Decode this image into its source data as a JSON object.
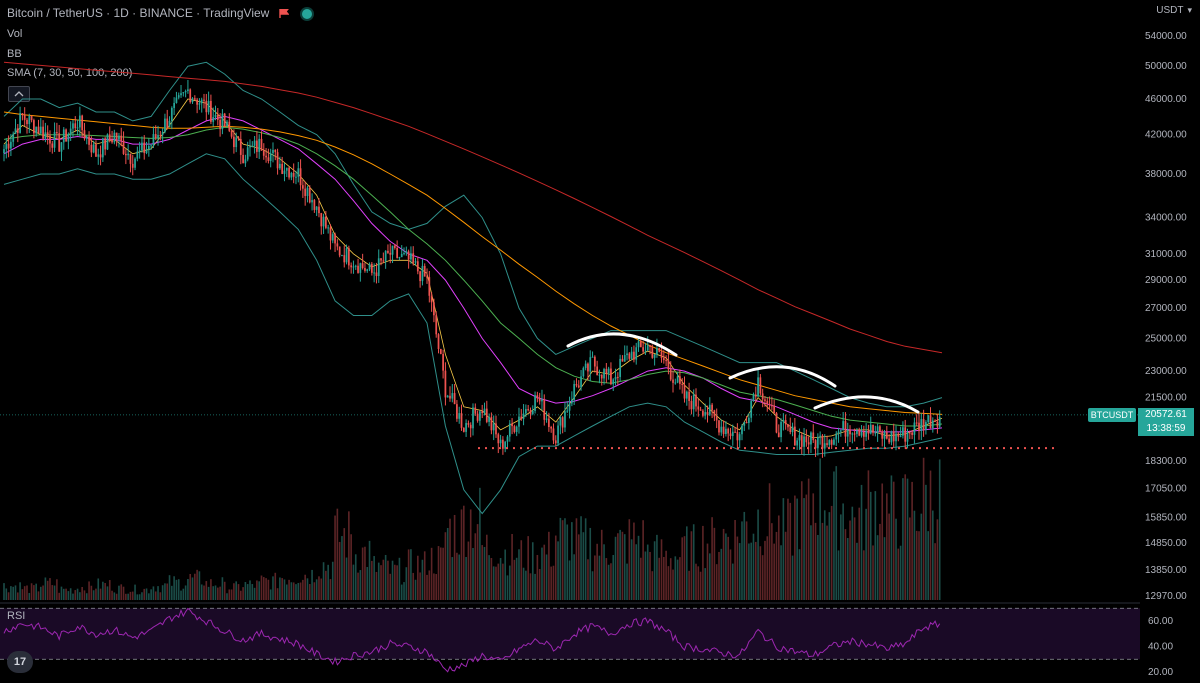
{
  "header": {
    "title": "Bitcoin / TetherUS · 1D · BINANCE · TradingView",
    "indicators": [
      "Vol",
      "BB",
      "SMA (7, 30, 50, 100, 200)"
    ]
  },
  "rsi_label": "RSI",
  "currency": "USDT",
  "price_symbol": "BTCUSDT",
  "last_price": "20572.61",
  "countdown": "13:38:59",
  "logo_text": "17",
  "colors": {
    "up": "#26a69a",
    "down": "#ef5350",
    "accent": "#26a69a",
    "rsi": "#9c27b0"
  },
  "chart_data": [
    {
      "type": "line",
      "title": "Bitcoin / TetherUS · 1D · BINANCE · TradingView",
      "scale": "log",
      "y_ticks": [
        54000,
        50000,
        46000,
        42000,
        38000,
        34000,
        31000,
        29000,
        27000,
        25000,
        23000,
        21500,
        18300,
        17050,
        15850,
        14850,
        13850,
        12970
      ],
      "y_tick_labels": [
        "54000.00",
        "50000.00",
        "46000.00",
        "42000.00",
        "38000.00",
        "34000.00",
        "31000.00",
        "29000.00",
        "27000.00",
        "25000.00",
        "23000.00",
        "21500.00",
        "18300.00",
        "17050.00",
        "15850.00",
        "14850.00",
        "13850.00",
        "12970.00"
      ],
      "ylim": [
        12500,
        57000
      ],
      "last_price": 20572.61,
      "support_level": 18900,
      "price_path": [
        40500,
        44000,
        42500,
        41000,
        43500,
        40000,
        42000,
        39500,
        41000,
        44000,
        47000,
        45000,
        43000,
        40000,
        41000,
        39000,
        38000,
        35000,
        31500,
        30500,
        29500,
        31000,
        30500,
        29000,
        22000,
        20000,
        21000,
        19000,
        20500,
        21500,
        19500,
        22000,
        23500,
        22500,
        24000,
        24500,
        23500,
        21500,
        21000,
        20000,
        19500,
        22500,
        20000,
        19500,
        19200,
        19500,
        20000,
        19800,
        19400,
        19600,
        20200,
        20572
      ],
      "sma": [
        {
          "name": "SMA 7",
          "color": "#f7c948",
          "values": [
            41000,
            43000,
            42000,
            41500,
            42500,
            41000,
            41500,
            40000,
            40500,
            43000,
            46000,
            45500,
            43500,
            41000,
            40500,
            39500,
            38000,
            36000,
            32500,
            31000,
            30000,
            30500,
            30500,
            29500,
            24000,
            21000,
            20800,
            19800,
            20300,
            21000,
            20200,
            21500,
            23000,
            22800,
            23600,
            24200,
            23800,
            22200,
            21200,
            20300,
            19800,
            21500,
            20500,
            19800,
            19400,
            19500,
            19800,
            19800,
            19500,
            19600,
            20000,
            20400
          ]
        },
        {
          "name": "SMA 30",
          "color": "#e040fb",
          "values": [
            40000,
            41000,
            41500,
            41500,
            41800,
            41500,
            41500,
            41000,
            41000,
            41500,
            42500,
            43500,
            44000,
            43500,
            42500,
            41500,
            40500,
            39000,
            37500,
            35500,
            33500,
            32000,
            31000,
            30500,
            29000,
            27000,
            25000,
            23500,
            22000,
            21500,
            21200,
            21300,
            21600,
            22000,
            22500,
            23000,
            23200,
            23000,
            22600,
            22000,
            21500,
            21300,
            21000,
            20600,
            20200,
            19900,
            19800,
            19700,
            19700,
            19700,
            19800,
            19900
          ]
        },
        {
          "name": "SMA 50",
          "color": "#4caf50",
          "values": [
            41500,
            41800,
            42000,
            42000,
            42000,
            41900,
            41800,
            41700,
            41600,
            41700,
            42000,
            42500,
            42800,
            42600,
            42200,
            41700,
            41000,
            40000,
            38800,
            37500,
            36000,
            34500,
            33000,
            31800,
            30500,
            29000,
            27500,
            26000,
            25000,
            24000,
            23200,
            22700,
            22400,
            22300,
            22500,
            22800,
            23000,
            22900,
            22600,
            22200,
            21800,
            21600,
            21400,
            21100,
            20800,
            20500,
            20300,
            20200,
            20100,
            20000,
            20000,
            20100
          ]
        },
        {
          "name": "SMA 100",
          "color": "#ff9800",
          "values": [
            44500,
            44200,
            44000,
            43800,
            43600,
            43400,
            43200,
            43000,
            42800,
            42700,
            42700,
            42800,
            42900,
            42800,
            42600,
            42300,
            41900,
            41400,
            40700,
            39900,
            39000,
            38000,
            37000,
            36000,
            34800,
            33600,
            32400,
            31300,
            30200,
            29200,
            28200,
            27300,
            26500,
            25800,
            25200,
            24600,
            24100,
            23700,
            23300,
            22900,
            22500,
            22200,
            21900,
            21600,
            21400,
            21200,
            21000,
            20900,
            20800,
            20700,
            20650,
            20600
          ]
        },
        {
          "name": "SMA 200",
          "color": "#c62828",
          "values": [
            50500,
            50300,
            50100,
            49900,
            49700,
            49500,
            49300,
            49100,
            48900,
            48700,
            48500,
            48300,
            48100,
            47800,
            47500,
            47100,
            46700,
            46200,
            45600,
            45000,
            44300,
            43600,
            42900,
            42100,
            41300,
            40500,
            39700,
            38900,
            38100,
            37300,
            36500,
            35700,
            34900,
            34100,
            33300,
            32500,
            31800,
            31100,
            30400,
            29700,
            29000,
            28300,
            27700,
            27100,
            26600,
            26100,
            25600,
            25200,
            24800,
            24500,
            24300,
            24100
          ]
        }
      ],
      "bb_upper": [
        44000,
        46000,
        46000,
        45000,
        45500,
        44500,
        44500,
        43500,
        44000,
        47000,
        50000,
        50500,
        49000,
        47000,
        46000,
        44500,
        43000,
        42000,
        40000,
        37000,
        34500,
        33500,
        33000,
        33500,
        35000,
        36000,
        34000,
        31000,
        27000,
        25000,
        24000,
        24500,
        25000,
        25500,
        25500,
        25500,
        25500,
        25000,
        24500,
        24000,
        23500,
        23500,
        23500,
        23000,
        22500,
        22000,
        21500,
        21200,
        21000,
        21000,
        21200,
        21500
      ],
      "bb_lower": [
        37000,
        37500,
        38000,
        38000,
        38500,
        38000,
        38000,
        37500,
        37500,
        38000,
        39000,
        40000,
        39500,
        37500,
        36000,
        34500,
        33000,
        30500,
        27500,
        26500,
        26500,
        27500,
        28000,
        26000,
        20000,
        17000,
        16000,
        17000,
        18500,
        19000,
        19000,
        19500,
        20000,
        20500,
        21000,
        21200,
        21000,
        20200,
        19700,
        19200,
        18800,
        18700,
        18600,
        18600,
        18600,
        18700,
        18800,
        18900,
        18900,
        19000,
        19200,
        19400
      ]
    },
    {
      "type": "bar",
      "title": "Vol",
      "values": [
        12,
        10,
        14,
        9,
        11,
        13,
        10,
        9,
        12,
        15,
        18,
        14,
        11,
        13,
        16,
        20,
        22,
        30,
        55,
        40,
        28,
        25,
        30,
        35,
        60,
        70,
        45,
        40,
        38,
        42,
        55,
        50,
        45,
        48,
        52,
        40,
        38,
        45,
        50,
        55,
        65,
        70,
        60,
        75,
        90,
        80,
        70,
        85,
        75,
        80,
        90,
        85
      ]
    },
    {
      "type": "line",
      "title": "RSI",
      "y_ticks": [
        60,
        40,
        20
      ],
      "y_tick_labels": [
        "60.00",
        "40.00",
        "20.00"
      ],
      "ylim": [
        15,
        75
      ],
      "values": [
        52,
        58,
        55,
        48,
        56,
        50,
        53,
        47,
        52,
        62,
        68,
        60,
        52,
        45,
        50,
        46,
        42,
        34,
        28,
        33,
        36,
        42,
        40,
        36,
        22,
        25,
        33,
        28,
        38,
        45,
        38,
        50,
        56,
        50,
        58,
        60,
        52,
        40,
        38,
        35,
        33,
        52,
        40,
        36,
        33,
        40,
        44,
        42,
        38,
        42,
        55,
        58
      ]
    }
  ]
}
